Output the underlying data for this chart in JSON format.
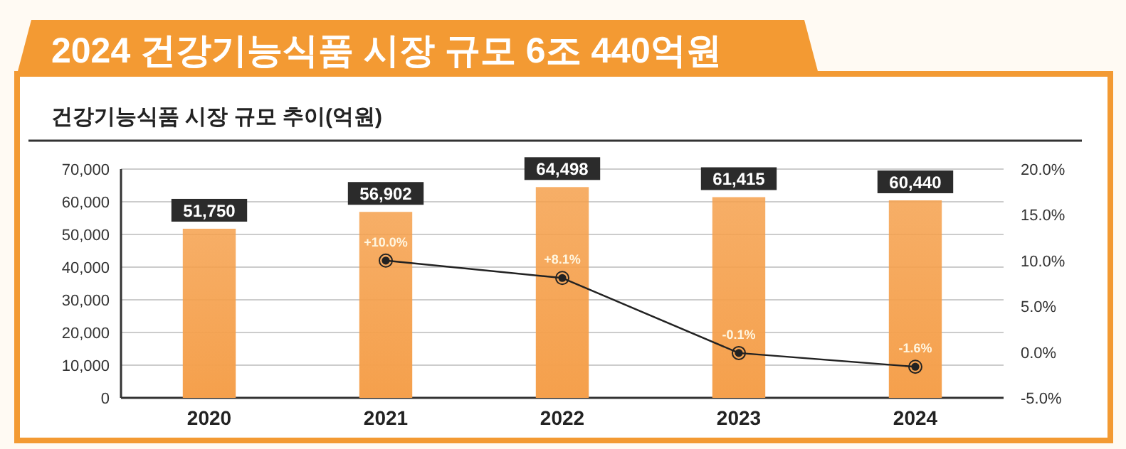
{
  "chart_data": {
    "type": "bar",
    "title": "2024 건강기능식품 시장 규모 6조 440억원",
    "subtitle": "건강기능식품 시장 규모 추이(억원)",
    "categories": [
      "2020",
      "2021",
      "2022",
      "2023",
      "2024"
    ],
    "series": [
      {
        "color": "#f5a04c",
        "values": [
          51750,
          56902,
          64498,
          61415,
          60440
        ],
        "value_labels": [
          "51,750",
          "56,902",
          "64,498",
          "61,415",
          "60,440"
        ]
      },
      {
        "type": "line",
        "axis": "y2",
        "color": "#222222",
        "marker": "circle",
        "values": [
          null,
          10.0,
          8.1,
          -0.1,
          -1.6
        ],
        "value_labels": [
          null,
          "+10.0%",
          "+8.1%",
          "-0.1%",
          "-1.6%"
        ]
      }
    ],
    "ylim": [
      0,
      70000
    ],
    "yticks": [
      {
        "value": 0,
        "label": "0"
      },
      {
        "value": 10000,
        "label": "10,000"
      },
      {
        "value": 20000,
        "label": "20,000"
      },
      {
        "value": 30000,
        "label": "30,000"
      },
      {
        "value": 40000,
        "label": "40,000"
      },
      {
        "value": 50000,
        "label": "50,000"
      },
      {
        "value": 60000,
        "label": "60,000"
      },
      {
        "value": 70000,
        "label": "70,000"
      }
    ],
    "y2lim": [
      -5,
      20
    ],
    "y2ticks": [
      {
        "value": -5,
        "label": "-5.0%"
      },
      {
        "value": 0,
        "label": "0.0%"
      },
      {
        "value": 5,
        "label": "5.0%"
      },
      {
        "value": 10,
        "label": "10.0%"
      },
      {
        "value": 15,
        "label": "15.0%"
      },
      {
        "value": 20,
        "label": "20.0%"
      }
    ],
    "grid": "y"
  }
}
